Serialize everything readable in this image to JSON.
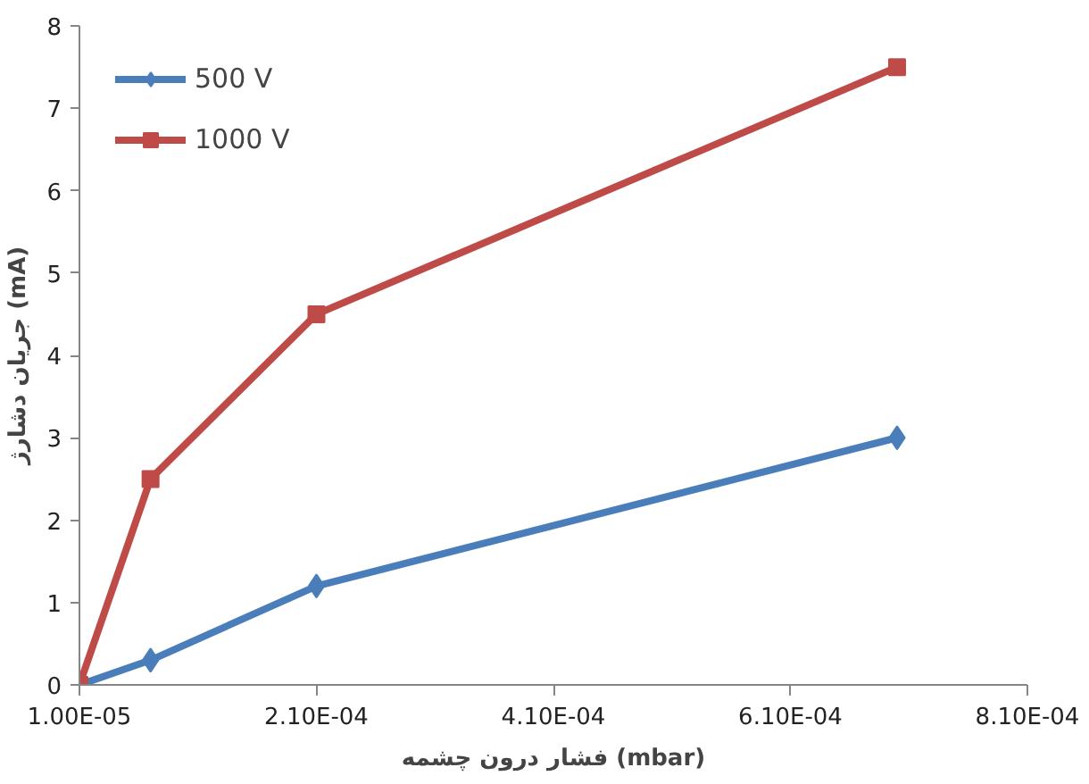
{
  "chart_data": {
    "type": "line",
    "xlabel": "فشار درون چشمه (mbar)",
    "ylabel": "جریان دشارژ (mA)",
    "xlim": [
      1e-05,
      0.00081
    ],
    "ylim": [
      0,
      8
    ],
    "xticks": [
      {
        "value": 1e-05,
        "label": "1.00E-05"
      },
      {
        "value": 0.00021,
        "label": "2.10E-04"
      },
      {
        "value": 0.00041,
        "label": "4.10E-04"
      },
      {
        "value": 0.00061,
        "label": "6.10E-04"
      },
      {
        "value": 0.00081,
        "label": "8.10E-04"
      }
    ],
    "yticks": [
      0,
      1,
      2,
      3,
      4,
      5,
      6,
      7,
      8
    ],
    "x": [
      1e-05,
      7e-05,
      0.00021,
      0.0007
    ],
    "series": [
      {
        "name": "500 V",
        "color": "#4a7ebb",
        "marker": "diamond",
        "values": [
          0,
          0.3,
          1.2,
          3
        ]
      },
      {
        "name": "1000 V",
        "color": "#be4b48",
        "marker": "square",
        "values": [
          0,
          2.5,
          4.5,
          7.5
        ]
      }
    ],
    "grid": false,
    "legend": "top left",
    "line_style": "solid"
  }
}
